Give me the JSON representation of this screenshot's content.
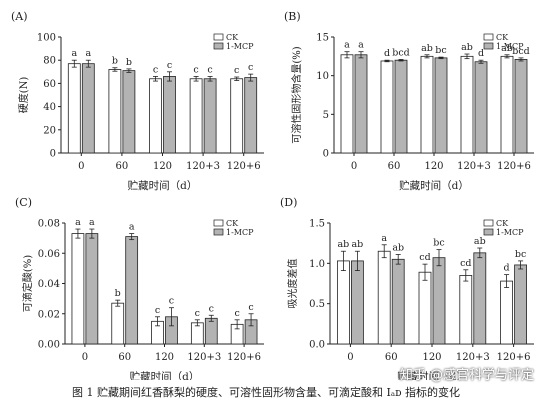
{
  "caption": "图 1   贮藏期间红香酥梨的硬度、可溶性固形物含量、可滴定酸和 Iₐᴅ 指标的变化",
  "watermark": "知乎 @感官科学与评定",
  "colors": {
    "ck": "#ffffff",
    "mcp": "#b3b3b3",
    "axis": "#222222"
  },
  "chart_data": [
    {
      "panel": "(A)",
      "type": "bar",
      "ylabel": "硬度(N)",
      "xlabel": "贮藏时间（d）",
      "categories": [
        "0",
        "60",
        "120",
        "120+3",
        "120+6"
      ],
      "ylim": [
        0,
        100
      ],
      "yticks": [
        "0",
        "20",
        "40",
        "60",
        "80",
        "100"
      ],
      "legend_position": "top-right",
      "series": [
        {
          "name": "CK",
          "values": [
            77,
            72,
            64,
            64,
            64
          ],
          "errors": [
            3,
            1.5,
            2,
            2,
            1.5
          ],
          "letters": [
            "a",
            "b",
            "c",
            "c",
            "c"
          ]
        },
        {
          "name": "1-MCP",
          "values": [
            77,
            71,
            66,
            64,
            65
          ],
          "errors": [
            3,
            1.5,
            4,
            2,
            3
          ],
          "letters": [
            "a",
            "b",
            "c",
            "c",
            "c"
          ]
        }
      ]
    },
    {
      "panel": "(B)",
      "type": "bar",
      "ylabel": "可溶性固形物含量(%)",
      "xlabel": "贮藏时间（d）",
      "categories": [
        "0",
        "60",
        "120",
        "120+3",
        "120+6"
      ],
      "ylim": [
        0,
        15
      ],
      "yticks": [
        "0",
        "5",
        "10",
        "15"
      ],
      "legend_position": "top-right",
      "series": [
        {
          "name": "CK",
          "values": [
            12.7,
            11.9,
            12.5,
            12.5,
            12.5
          ],
          "errors": [
            0.4,
            0.1,
            0.2,
            0.3,
            0.2
          ],
          "letters": [
            "a",
            "d",
            "ab",
            "ab",
            "ab"
          ]
        },
        {
          "name": "1-MCP",
          "values": [
            12.7,
            12.0,
            12.3,
            11.8,
            12.1
          ],
          "errors": [
            0.4,
            0.1,
            0.1,
            0.2,
            0.2
          ],
          "letters": [
            "a",
            "bcd",
            "bc",
            "d",
            "bcd"
          ]
        }
      ]
    },
    {
      "panel": "(C)",
      "type": "bar",
      "ylabel": "可滴定酸(%)",
      "xlabel": "贮藏时间（d）",
      "categories": [
        "0",
        "60",
        "120",
        "120+3",
        "120+6"
      ],
      "ylim": [
        0,
        0.08
      ],
      "yticks": [
        "0.00",
        "0.02",
        "0.04",
        "0.06",
        "0.08"
      ],
      "legend_position": "top-right",
      "series": [
        {
          "name": "CK",
          "values": [
            0.073,
            0.027,
            0.015,
            0.014,
            0.013
          ],
          "errors": [
            0.003,
            0.002,
            0.003,
            0.002,
            0.003
          ],
          "letters": [
            "a",
            "b",
            "c",
            "c",
            "c"
          ]
        },
        {
          "name": "1-MCP",
          "values": [
            0.073,
            0.071,
            0.018,
            0.017,
            0.016
          ],
          "errors": [
            0.003,
            0.002,
            0.006,
            0.002,
            0.004
          ],
          "letters": [
            "a",
            "a",
            "c",
            "c",
            "c"
          ]
        }
      ]
    },
    {
      "panel": "(D)",
      "type": "bar",
      "ylabel": "吸光度差值",
      "xlabel": "贮藏时间（d）",
      "categories": [
        "0",
        "60",
        "120",
        "120+3",
        "120+6"
      ],
      "ylim": [
        0,
        1.5
      ],
      "yticks": [
        "0.0",
        "0.5",
        "1.0",
        "1.5"
      ],
      "legend_position": "top-right",
      "series": [
        {
          "name": "CK",
          "values": [
            1.03,
            1.15,
            0.89,
            0.85,
            0.78
          ],
          "errors": [
            0.12,
            0.08,
            0.1,
            0.07,
            0.08
          ],
          "letters": [
            "ab",
            "a",
            "cd",
            "cd",
            "d"
          ]
        },
        {
          "name": "1-MCP",
          "values": [
            1.03,
            1.05,
            1.07,
            1.13,
            0.98
          ],
          "errors": [
            0.12,
            0.06,
            0.1,
            0.06,
            0.05
          ],
          "letters": [
            "ab",
            "ab",
            "bc",
            "ab",
            "bc"
          ]
        }
      ]
    }
  ]
}
